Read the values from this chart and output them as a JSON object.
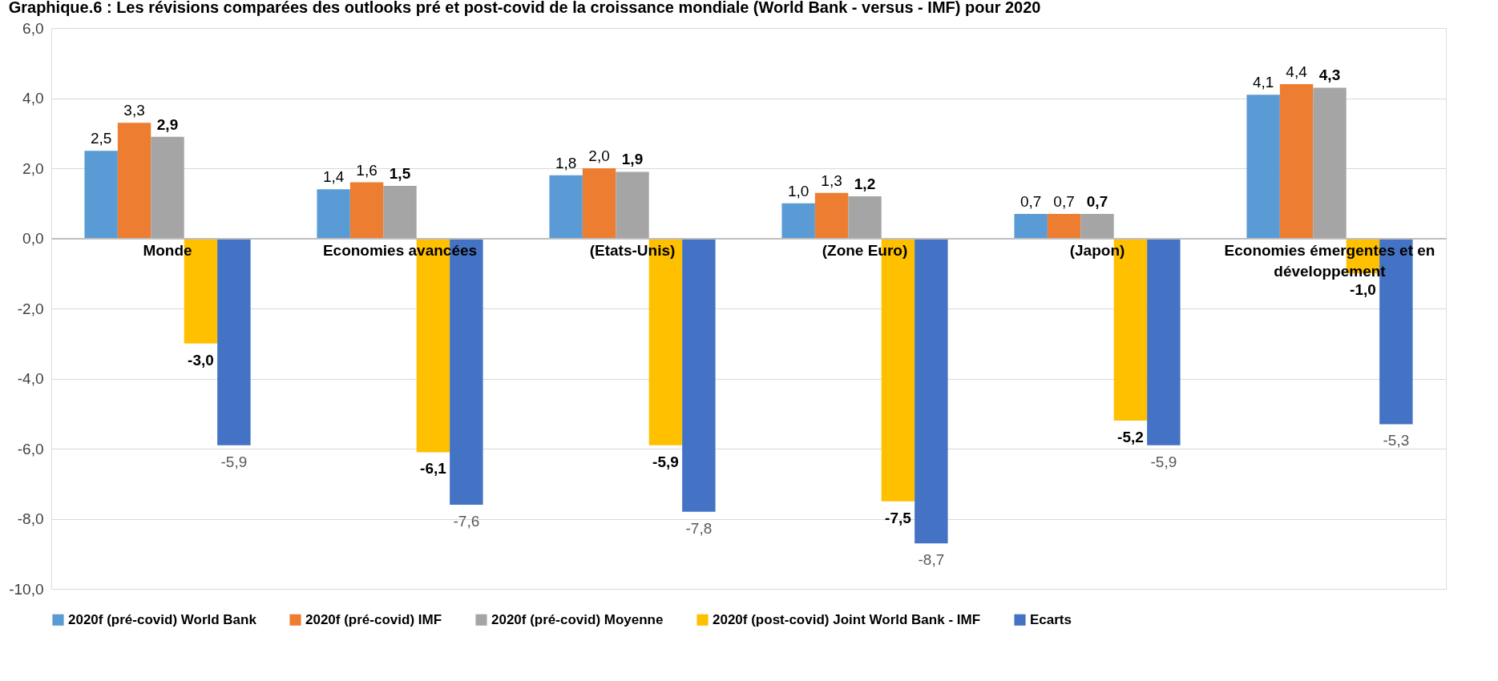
{
  "chart_data": {
    "type": "bar",
    "title": "Graphique.6 : Les révisions comparées des outlooks pré et post-covid de la croissance mondiale (World Bank - versus - IMF) pour 2020",
    "categories": [
      "Monde",
      "Economies avancées",
      "(Etats-Unis)",
      "(Zone Euro)",
      "(Japon)",
      "Economies émergentes et en développement"
    ],
    "series": [
      {
        "name": "2020f (pré-covid) World Bank",
        "color": "#5b9bd5",
        "values": [
          2.5,
          1.4,
          1.8,
          1.0,
          0.7,
          4.1
        ],
        "value_labels": [
          "2,5",
          "1,4",
          "1,8",
          "1,0",
          "0,7",
          "4,1"
        ]
      },
      {
        "name": "2020f (pré-covid) IMF",
        "color": "#ed7d31",
        "values": [
          3.3,
          1.6,
          2.0,
          1.3,
          0.7,
          4.4
        ],
        "value_labels": [
          "3,3",
          "1,6",
          "2,0",
          "1,3",
          "0,7",
          "4,4"
        ]
      },
      {
        "name": "2020f (pré-covid) Moyenne",
        "color": "#a5a5a5",
        "values": [
          2.9,
          1.5,
          1.9,
          1.2,
          0.7,
          4.3
        ],
        "value_labels": [
          "2,9",
          "1,5",
          "1,9",
          "1,2",
          "0,7",
          "4,3"
        ]
      },
      {
        "name": "2020f (post-covid) Joint World Bank - IMF",
        "color": "#ffc000",
        "values": [
          -3.0,
          -6.1,
          -5.9,
          -7.5,
          -5.2,
          -1.0
        ],
        "value_labels": [
          "-3,0",
          "-6,1",
          "-5,9",
          "-7,5",
          "-5,2",
          "-1,0"
        ]
      },
      {
        "name": "Ecarts",
        "color": "#4472c4",
        "values": [
          -5.9,
          -7.6,
          -7.8,
          -8.7,
          -5.9,
          -5.3
        ],
        "value_labels": [
          "-5,9",
          "-7,6",
          "-7,8",
          "-8,7",
          "-5,9",
          "-5,3"
        ]
      }
    ],
    "ylim": [
      -10,
      6
    ],
    "yticks": [
      {
        "value": -10,
        "label": "-10,0"
      },
      {
        "value": -8,
        "label": "-8,0"
      },
      {
        "value": -6,
        "label": "-6,0"
      },
      {
        "value": -4,
        "label": "-4,0"
      },
      {
        "value": -2,
        "label": "-2,0"
      },
      {
        "value": 0,
        "label": "0,0"
      },
      {
        "value": 2,
        "label": "2,0"
      },
      {
        "value": 4,
        "label": "4,0"
      },
      {
        "value": 6,
        "label": "6,0"
      }
    ],
    "grid": "y",
    "legend": "bottom"
  }
}
